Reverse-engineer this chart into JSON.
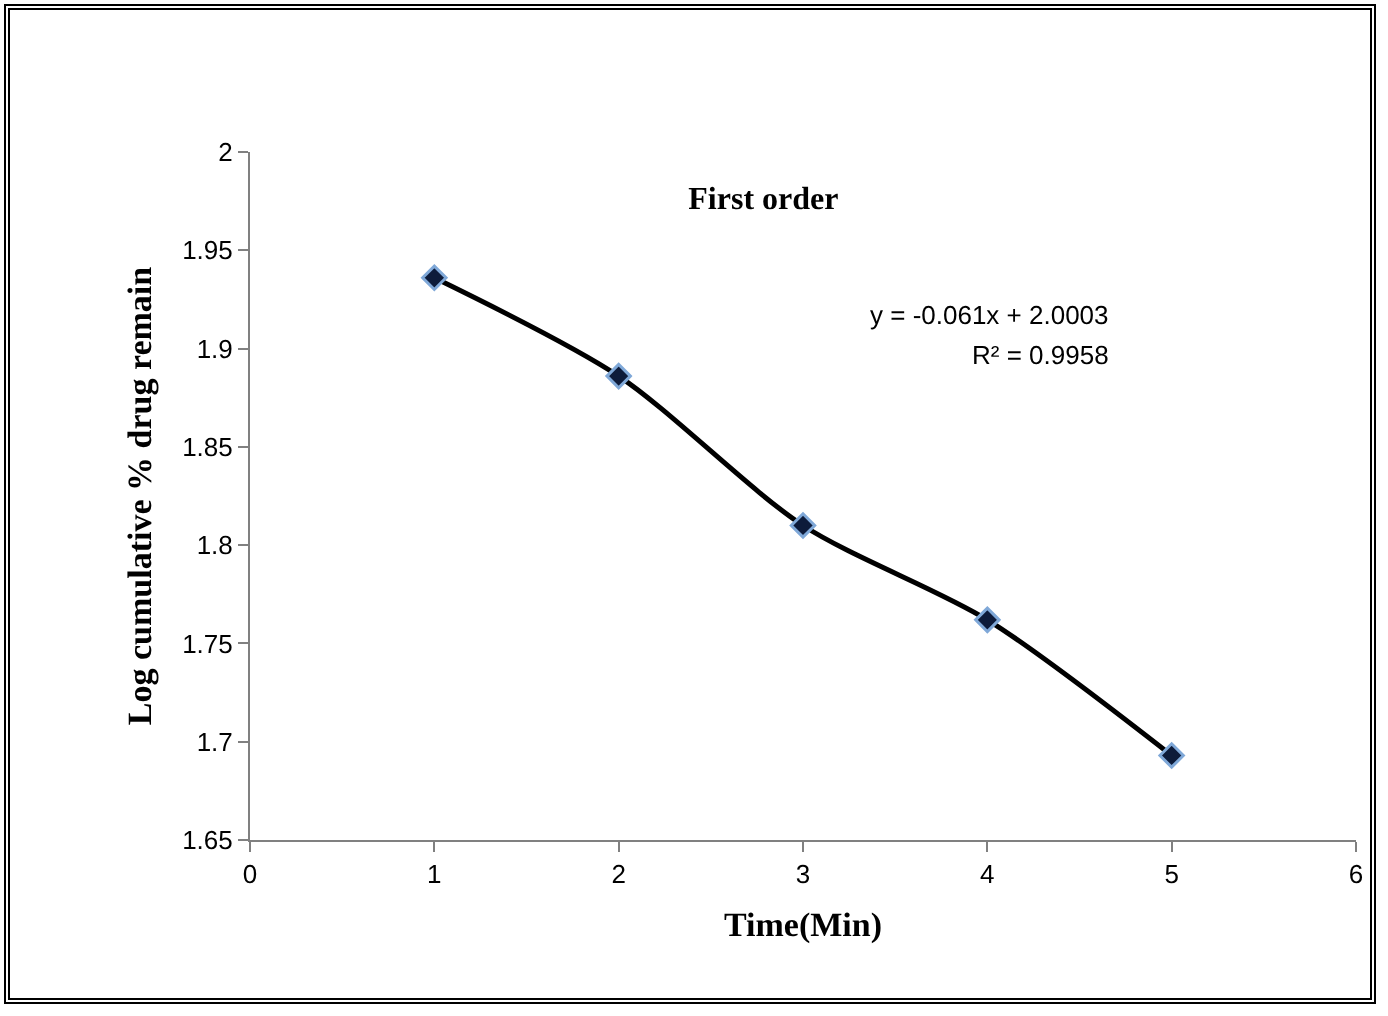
{
  "chart_data": {
    "type": "line",
    "title": "First order",
    "xlabel": "Time(Min)",
    "ylabel": "Log cumulative % drug remain",
    "x": [
      1,
      2,
      3,
      4,
      5
    ],
    "series": [
      {
        "color": "#000000",
        "values": [
          1.936,
          1.886,
          1.81,
          1.762,
          1.693
        ]
      }
    ],
    "xlim": [
      0,
      6
    ],
    "xticks": [
      0,
      1,
      2,
      3,
      4,
      5,
      6
    ],
    "ylim": [
      1.65,
      2
    ],
    "yticks": [
      1.65,
      1.7,
      1.75,
      1.8,
      1.85,
      1.9,
      1.95,
      2
    ],
    "annotations": [
      "y = -0.061x + 2.0003",
      "R² = 0.9958"
    ],
    "grid": false,
    "legend": false,
    "marker": "diamond",
    "line_style": "solid"
  }
}
